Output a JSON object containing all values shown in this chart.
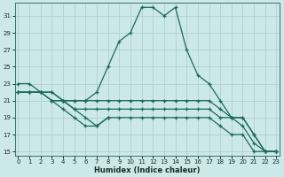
{
  "xlabel": "Humidex (Indice chaleur)",
  "bg_color": "#cce8e8",
  "grid_color": "#aacccc",
  "line_color": "#1a6b5a",
  "xlim": [
    -0.3,
    23.3
  ],
  "ylim": [
    14.5,
    32.5
  ],
  "yticks": [
    15,
    17,
    19,
    21,
    23,
    25,
    27,
    29,
    31
  ],
  "xticks": [
    0,
    1,
    2,
    3,
    4,
    5,
    6,
    7,
    8,
    9,
    10,
    11,
    12,
    13,
    14,
    15,
    16,
    17,
    18,
    19,
    20,
    21,
    22,
    23
  ],
  "lines": [
    {
      "x": [
        0,
        1,
        2,
        3,
        4,
        5,
        6,
        7,
        8,
        9,
        10,
        11,
        12,
        13,
        14,
        15,
        16,
        17,
        18,
        19,
        20,
        21,
        22,
        23
      ],
      "y": [
        23,
        23,
        22,
        21,
        21,
        21,
        21,
        22,
        25,
        28,
        29,
        32,
        32,
        31,
        32,
        27,
        24,
        23,
        21,
        19,
        19,
        17,
        15,
        15
      ]
    },
    {
      "x": [
        0,
        1,
        2,
        3,
        4,
        5,
        6,
        7,
        8,
        9,
        10,
        11,
        12,
        13,
        14,
        15,
        16,
        17,
        18,
        19,
        20,
        21,
        22,
        23
      ],
      "y": [
        22,
        22,
        22,
        22,
        21,
        21,
        21,
        21,
        21,
        21,
        21,
        21,
        21,
        21,
        21,
        21,
        21,
        21,
        20,
        19,
        19,
        17,
        15,
        15
      ]
    },
    {
      "x": [
        0,
        1,
        2,
        3,
        4,
        5,
        6,
        7,
        8,
        9,
        10,
        11,
        12,
        13,
        14,
        15,
        16,
        17,
        18,
        19,
        20,
        21,
        22,
        23
      ],
      "y": [
        22,
        22,
        22,
        22,
        21,
        20,
        20,
        20,
        20,
        20,
        20,
        20,
        20,
        20,
        20,
        20,
        20,
        20,
        19,
        19,
        18,
        16,
        15,
        15
      ]
    },
    {
      "x": [
        0,
        1,
        2,
        3,
        4,
        5,
        6,
        7,
        8,
        9,
        10,
        11,
        12,
        13,
        14,
        15,
        16,
        17,
        18,
        19,
        20,
        21,
        22,
        23
      ],
      "y": [
        22,
        22,
        22,
        21,
        20,
        19,
        18,
        18,
        19,
        19,
        19,
        19,
        19,
        19,
        19,
        19,
        19,
        19,
        18,
        17,
        17,
        15,
        15,
        15
      ]
    }
  ],
  "extra_segment": {
    "x": [
      3,
      4,
      5,
      6,
      7,
      8
    ],
    "y": [
      21,
      21,
      20,
      19,
      18,
      19
    ]
  }
}
